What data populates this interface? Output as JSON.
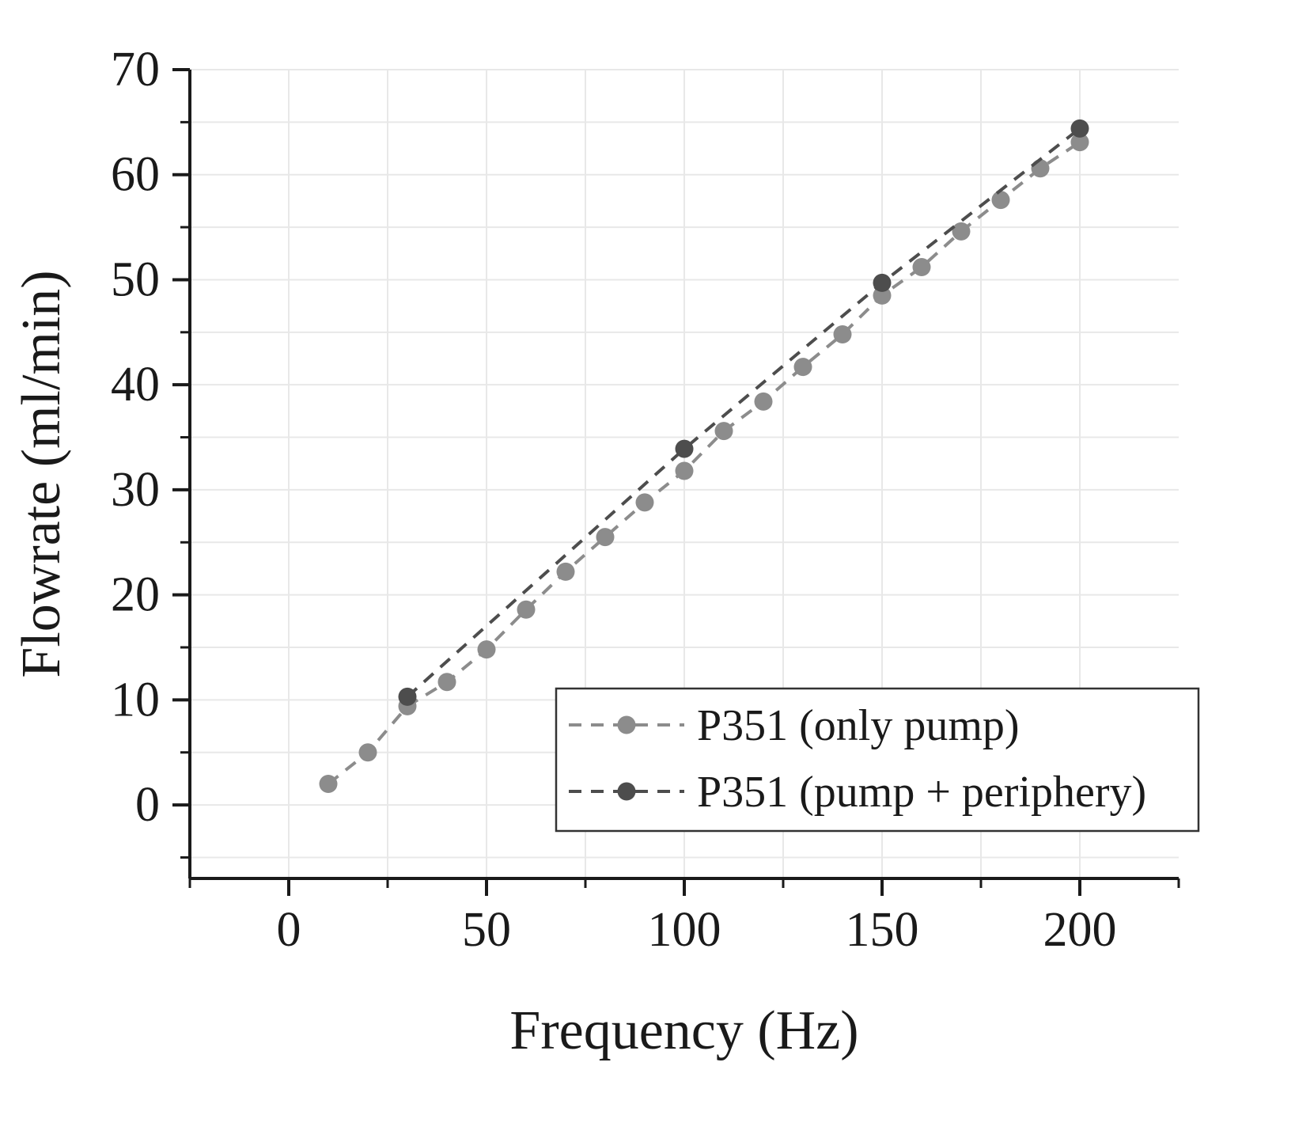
{
  "chart_data": {
    "type": "scatter",
    "title": "",
    "xlabel": "Frequency (Hz)",
    "ylabel": "Flowrate (ml/min)",
    "xlim": [
      -25,
      225
    ],
    "ylim": [
      -7,
      70
    ],
    "xticks": [
      0,
      50,
      100,
      150,
      200
    ],
    "yticks": [
      0,
      10,
      20,
      30,
      40,
      50,
      60,
      70
    ],
    "x_minor_step": 25,
    "y_minor_step": 5,
    "grid": true,
    "legend_position": "lower right",
    "series": [
      {
        "name": "P351 (only pump)",
        "color": "#8c8c8c",
        "marker": "circle",
        "linestyle": "dashed",
        "x": [
          10,
          20,
          30,
          40,
          50,
          60,
          70,
          80,
          90,
          100,
          110,
          120,
          130,
          140,
          150,
          160,
          170,
          180,
          190,
          200
        ],
        "y": [
          2.0,
          5.0,
          9.4,
          11.7,
          14.8,
          18.6,
          22.2,
          25.5,
          28.8,
          31.8,
          35.6,
          38.4,
          41.7,
          44.8,
          48.5,
          51.2,
          54.6,
          57.6,
          60.6,
          63.1
        ]
      },
      {
        "name": "P351 (pump + periphery)",
        "color": "#4d4d4d",
        "marker": "circle",
        "linestyle": "dashed",
        "x": [
          30,
          100,
          150,
          200
        ],
        "y": [
          10.3,
          33.9,
          49.7,
          64.4
        ]
      }
    ],
    "axis_color": "#1a1a1a",
    "grid_color": "#e8e8e8",
    "legend_border_color": "#333333"
  }
}
